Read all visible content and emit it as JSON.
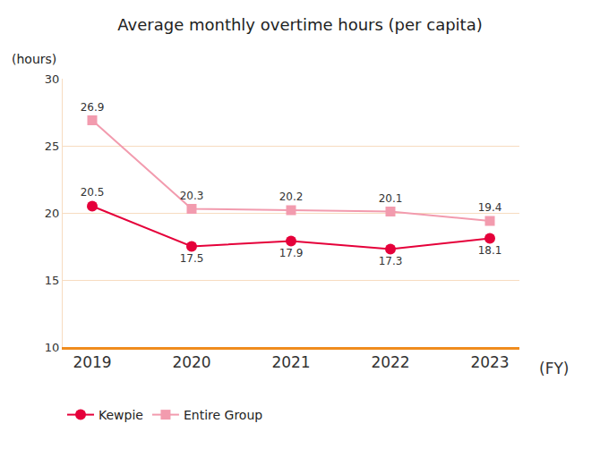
{
  "chart_data": {
    "type": "line",
    "title": "Average monthly overtime hours (per capita)",
    "y_label": "(hours)",
    "x_label": "(FY)",
    "categories": [
      "2019",
      "2020",
      "2021",
      "2022",
      "2023"
    ],
    "series": [
      {
        "name": "Kewpie",
        "color": "#e5003a",
        "marker": "circle",
        "values": [
          20.5,
          17.5,
          17.9,
          17.3,
          18.1
        ]
      },
      {
        "name": "Entire Group",
        "color": "#f29bae",
        "marker": "square",
        "values": [
          26.9,
          20.3,
          20.2,
          20.1,
          19.4
        ]
      }
    ],
    "ylim": [
      10,
      30
    ],
    "yticks": [
      10,
      15,
      20,
      25,
      30
    ],
    "grid": true,
    "data_labels": true,
    "legend": "bottom left"
  }
}
